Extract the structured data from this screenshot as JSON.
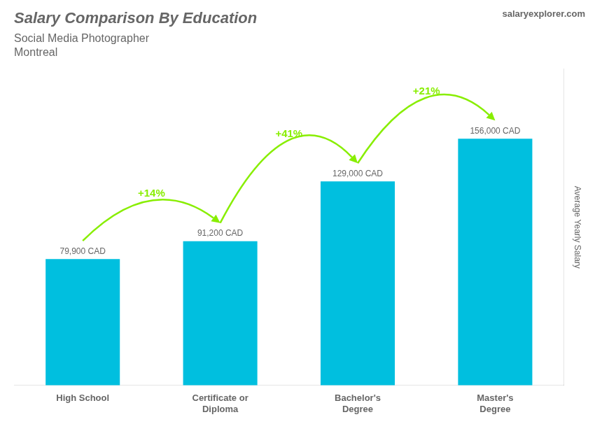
{
  "chart_data": {
    "type": "bar",
    "title": "Salary Comparison By Education",
    "subtitle": [
      "Social Media Photographer",
      "Montreal"
    ],
    "ylabel": "Average Yearly Salary",
    "categories": [
      "High School",
      "Certificate or\nDiploma",
      "Bachelor's\nDegree",
      "Master's\nDegree"
    ],
    "values": [
      79900,
      91200,
      129000,
      156000
    ],
    "value_labels": [
      "79,900 CAD",
      "91,200 CAD",
      "129,000 CAD",
      "156,000 CAD"
    ],
    "data_labels": true,
    "color": "#00BFDF",
    "ylim": [
      0,
      200000
    ],
    "tick_labels": "x",
    "grid": false,
    "annotations": [
      {
        "text": "+14%",
        "from": "High School",
        "to": "Certificate or\nDiploma",
        "color": "#88ee00"
      },
      {
        "text": "+41%",
        "from": "Certificate or\nDiploma",
        "to": "Bachelor's\nDegree",
        "color": "#88ee00"
      },
      {
        "text": "+21%",
        "from": "Bachelor's\nDegree",
        "to": "Master's\nDegree",
        "color": "#88ee00"
      },
      {
        "text": "salaryexplorer.com"
      }
    ]
  }
}
